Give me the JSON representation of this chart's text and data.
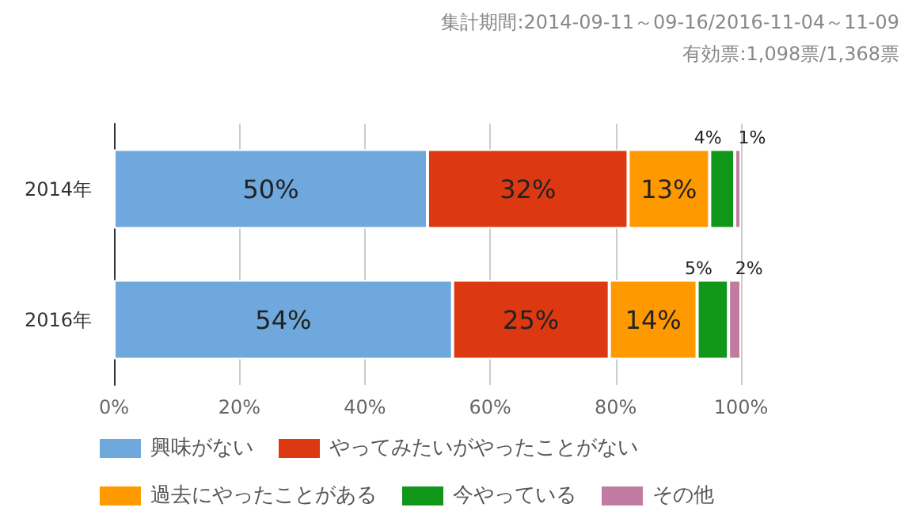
{
  "chart_data": {
    "type": "bar",
    "orientation": "horizontal",
    "stacked": true,
    "annotations": [
      "集計期間:2014-09-11～09-16/2016-11-04～11-09",
      "有効票:1,098票/1,368票"
    ],
    "categories": [
      "2014年",
      "2016年"
    ],
    "series": [
      {
        "name": "興味がない",
        "color": "#6fa8dc",
        "values": [
          50,
          54
        ],
        "value_labels": [
          "50%",
          "54%"
        ]
      },
      {
        "name": "やってみたいがやったことがない",
        "color": "#dc3912",
        "values": [
          32,
          25
        ],
        "value_labels": [
          "32%",
          "25%"
        ]
      },
      {
        "name": "過去にやったことがある",
        "color": "#ff9900",
        "values": [
          13,
          14
        ],
        "value_labels": [
          "13%",
          "14%"
        ]
      },
      {
        "name": "今やっている",
        "color": "#109618",
        "values": [
          4,
          5
        ],
        "value_labels": [
          "4%",
          "5%"
        ]
      },
      {
        "name": "その他",
        "color": "#c27ba0",
        "values": [
          1,
          2
        ],
        "value_labels": [
          "1%",
          "2%"
        ]
      }
    ],
    "xlim": [
      0,
      100
    ],
    "xticks": [
      {
        "value": 0,
        "label": "0%"
      },
      {
        "value": 20,
        "label": "20%"
      },
      {
        "value": 40,
        "label": "40%"
      },
      {
        "value": 60,
        "label": "60%"
      },
      {
        "value": 80,
        "label": "80%"
      },
      {
        "value": 100,
        "label": "100%"
      }
    ],
    "grid": "x",
    "legend": "bottom left"
  }
}
